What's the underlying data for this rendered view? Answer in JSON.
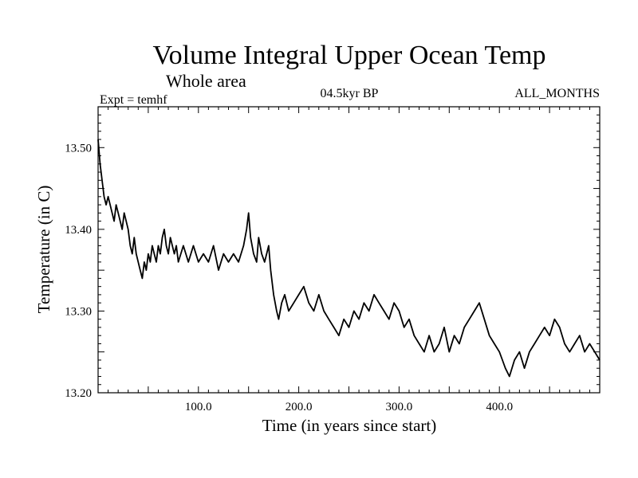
{
  "chart_data": {
    "type": "line",
    "title": "Volume Integral Upper Ocean Temp",
    "subtitle": "Whole area",
    "experiment": "Expt = temhf",
    "period": "04.5kyr BP",
    "months": "ALL_MONTHS",
    "xlabel": "Time (in years since start)",
    "ylabel": "Temperature (in C)",
    "xlim": [
      0,
      500
    ],
    "ylim": [
      13.2,
      13.55
    ],
    "xticks": [
      {
        "value": 100,
        "label": "100.0"
      },
      {
        "value": 200,
        "label": "200.0"
      },
      {
        "value": 300,
        "label": "300.0"
      },
      {
        "value": 400,
        "label": "400.0"
      }
    ],
    "yticks": [
      {
        "value": 13.2,
        "label": "13.20"
      },
      {
        "value": 13.3,
        "label": "13.30"
      },
      {
        "value": 13.4,
        "label": "13.40"
      },
      {
        "value": 13.5,
        "label": "13.50"
      }
    ],
    "series": [
      {
        "name": "temhf",
        "color": "#000000",
        "x": [
          0,
          2,
          4,
          6,
          8,
          10,
          12,
          14,
          16,
          18,
          20,
          22,
          24,
          26,
          28,
          30,
          32,
          34,
          36,
          38,
          40,
          42,
          44,
          46,
          48,
          50,
          52,
          54,
          56,
          58,
          60,
          62,
          64,
          66,
          68,
          70,
          72,
          74,
          76,
          78,
          80,
          85,
          90,
          95,
          100,
          105,
          110,
          115,
          120,
          125,
          130,
          135,
          140,
          145,
          148,
          150,
          152,
          155,
          158,
          160,
          163,
          166,
          170,
          172,
          175,
          178,
          180,
          183,
          186,
          190,
          195,
          200,
          205,
          210,
          215,
          220,
          225,
          230,
          235,
          240,
          245,
          250,
          255,
          260,
          265,
          270,
          275,
          280,
          285,
          290,
          295,
          300,
          305,
          310,
          315,
          320,
          325,
          330,
          335,
          340,
          345,
          350,
          355,
          360,
          365,
          370,
          375,
          380,
          385,
          390,
          395,
          400,
          403,
          406,
          410,
          415,
          420,
          425,
          430,
          435,
          440,
          445,
          450,
          455,
          460,
          465,
          470,
          475,
          480,
          485,
          490,
          495,
          500
        ],
        "y": [
          13.51,
          13.48,
          13.46,
          13.44,
          13.43,
          13.44,
          13.43,
          13.42,
          13.41,
          13.43,
          13.42,
          13.41,
          13.4,
          13.42,
          13.41,
          13.4,
          13.38,
          13.37,
          13.39,
          13.37,
          13.36,
          13.35,
          13.34,
          13.36,
          13.35,
          13.37,
          13.36,
          13.38,
          13.37,
          13.36,
          13.38,
          13.37,
          13.39,
          13.4,
          13.38,
          13.37,
          13.39,
          13.38,
          13.37,
          13.38,
          13.36,
          13.38,
          13.36,
          13.38,
          13.36,
          13.37,
          13.36,
          13.38,
          13.35,
          13.37,
          13.36,
          13.37,
          13.36,
          13.38,
          13.4,
          13.42,
          13.39,
          13.37,
          13.36,
          13.39,
          13.37,
          13.36,
          13.38,
          13.35,
          13.32,
          13.3,
          13.29,
          13.31,
          13.32,
          13.3,
          13.31,
          13.32,
          13.33,
          13.31,
          13.3,
          13.32,
          13.3,
          13.29,
          13.28,
          13.27,
          13.29,
          13.28,
          13.3,
          13.29,
          13.31,
          13.3,
          13.32,
          13.31,
          13.3,
          13.29,
          13.31,
          13.3,
          13.28,
          13.29,
          13.27,
          13.26,
          13.25,
          13.27,
          13.25,
          13.26,
          13.28,
          13.25,
          13.27,
          13.26,
          13.28,
          13.29,
          13.3,
          13.31,
          13.29,
          13.27,
          13.26,
          13.25,
          13.24,
          13.23,
          13.22,
          13.24,
          13.25,
          13.23,
          13.25,
          13.26,
          13.27,
          13.28,
          13.27,
          13.29,
          13.28,
          13.26,
          13.25,
          13.26,
          13.27,
          13.25,
          13.26,
          13.25,
          13.24
        ]
      }
    ]
  }
}
